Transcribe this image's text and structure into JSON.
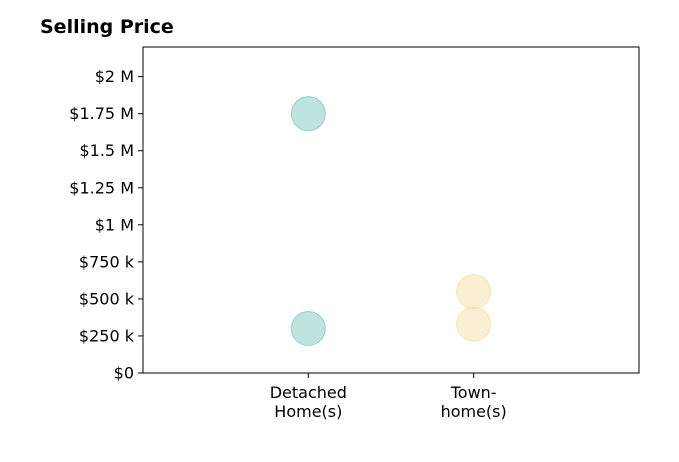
{
  "chart_data": {
    "type": "scatter",
    "title": "Selling Price",
    "xlabel": "",
    "ylabel": "",
    "categories": [
      [
        "Detached",
        "Home(s)"
      ],
      [
        "Town-",
        "home(s)"
      ]
    ],
    "x_range": [
      -1,
      2
    ],
    "ylim": [
      0,
      2200000
    ],
    "y_ticks": [
      0,
      250000,
      500000,
      750000,
      1000000,
      1250000,
      1500000,
      1750000,
      2000000
    ],
    "y_tick_labels": [
      "$0",
      "$250 k",
      "$500 k",
      "$750 k",
      "$1 M",
      "$1.25 M",
      "$1.5 M",
      "$1.75 M",
      "$2 M"
    ],
    "grid": false,
    "legend": "none",
    "series": [
      {
        "category_index": 0,
        "color": "#7fc8c0",
        "values": [
          1750000,
          300000
        ]
      },
      {
        "category_index": 1,
        "color": "#f6dfa8",
        "values": [
          550000,
          330000
        ]
      }
    ]
  }
}
